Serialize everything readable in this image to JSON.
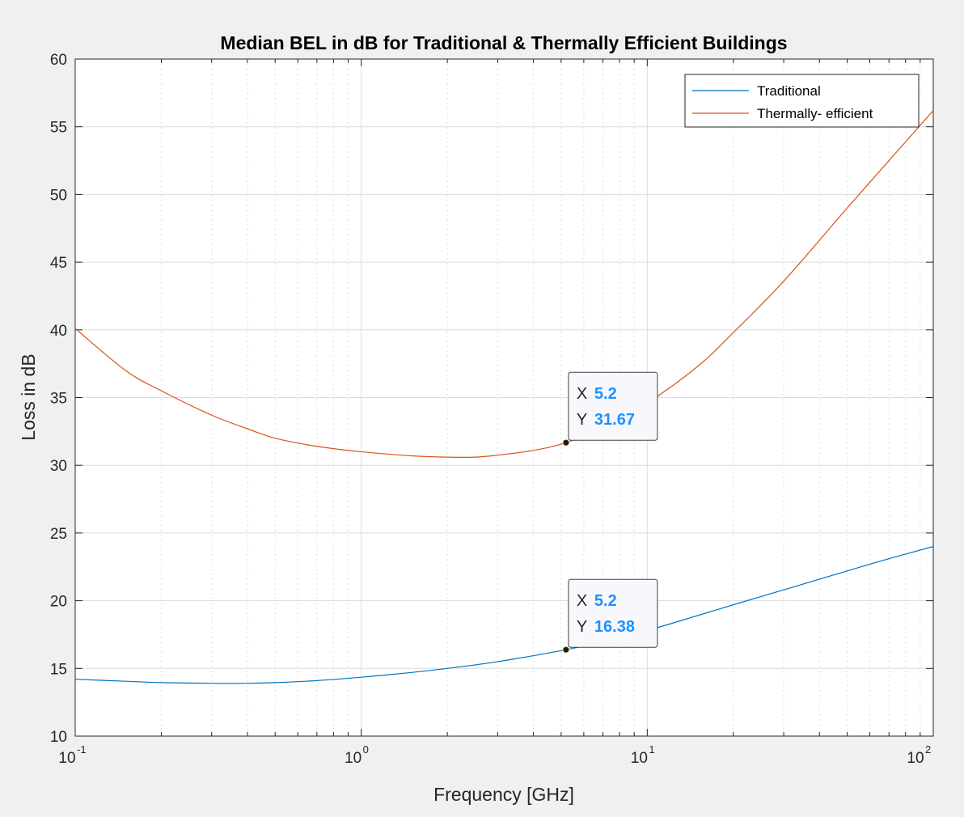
{
  "chart_data": {
    "type": "line",
    "title": "Median BEL in dB for Traditional & Thermally Efficient Buildings",
    "xlabel": "Frequency [GHz]",
    "ylabel": "Loss in dB",
    "xscale": "log",
    "xlim": [
      0.1,
      100
    ],
    "ylim": [
      10,
      60
    ],
    "yticks": [
      10,
      15,
      20,
      25,
      30,
      35,
      40,
      45,
      50,
      55,
      60
    ],
    "xticks": [
      {
        "base": "10",
        "exp": "-1",
        "value": 0.1
      },
      {
        "base": "10",
        "exp": "0",
        "value": 1
      },
      {
        "base": "10",
        "exp": "1",
        "value": 10
      },
      {
        "base": "10",
        "exp": "2",
        "value": 100
      }
    ],
    "grid": true,
    "legend_position": "top-right",
    "series": [
      {
        "name": "Traditional",
        "color": "#0072bd",
        "x": [
          0.1,
          0.15,
          0.2,
          0.3,
          0.4,
          0.5,
          0.7,
          1,
          1.5,
          2,
          3,
          5.2,
          7,
          10,
          15,
          20,
          30,
          50,
          70,
          100
        ],
        "y": [
          14.2,
          14.05,
          13.95,
          13.9,
          13.9,
          13.95,
          14.1,
          14.35,
          14.7,
          15.0,
          15.5,
          16.38,
          17.0,
          17.8,
          18.9,
          19.7,
          20.8,
          22.2,
          23.1,
          24.0
        ]
      },
      {
        "name": "Thermally- efficient",
        "color": "#d95319",
        "x": [
          0.1,
          0.15,
          0.2,
          0.3,
          0.4,
          0.5,
          0.7,
          1,
          1.5,
          2,
          2.5,
          3,
          4,
          5.2,
          7,
          10,
          15,
          20,
          30,
          50,
          70,
          100
        ],
        "y": [
          40.1,
          37.0,
          35.5,
          33.7,
          32.7,
          32.0,
          31.4,
          31.0,
          30.7,
          30.6,
          30.6,
          30.75,
          31.1,
          31.67,
          32.8,
          34.6,
          37.3,
          39.8,
          43.6,
          49.0,
          52.5,
          56.2
        ]
      }
    ],
    "datatips": [
      {
        "series": "Traditional",
        "x": 5.2,
        "y": 16.38,
        "x_label": "X",
        "y_label": "Y",
        "x_text": "5.2",
        "y_text": "16.38"
      },
      {
        "series": "Thermally- efficient",
        "x": 5.2,
        "y": 31.67,
        "x_label": "X",
        "y_label": "Y",
        "x_text": "5.2",
        "y_text": "31.67"
      }
    ]
  }
}
